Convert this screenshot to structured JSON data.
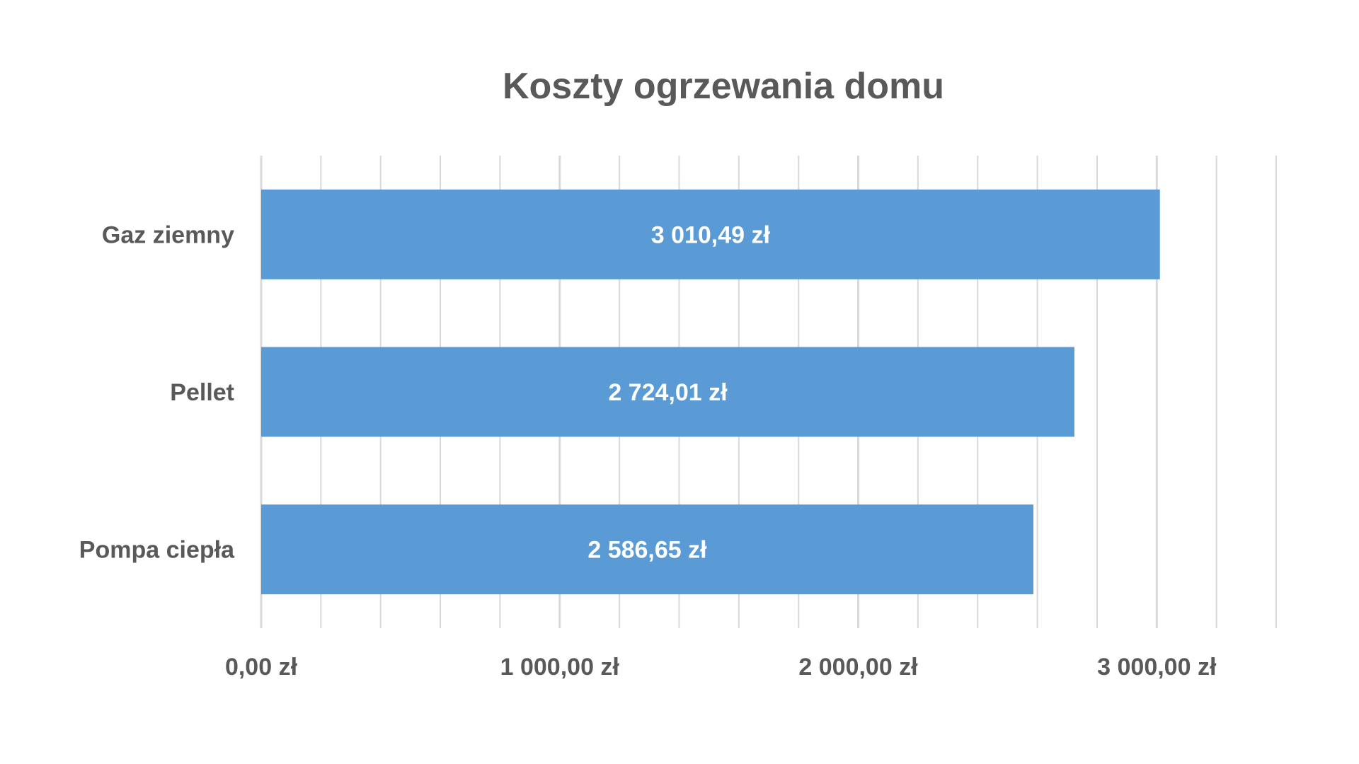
{
  "chart_data": {
    "type": "bar",
    "orientation": "horizontal",
    "title": "Koszty ogrzewania domu",
    "categories": [
      "Gaz ziemny",
      "Pellet",
      "Pompa ciepła"
    ],
    "values": [
      3010.49,
      2724.01,
      2586.65
    ],
    "value_labels": [
      "3 010,49 zł",
      "2 724,01 zł",
      "2 586,65 zł"
    ],
    "xlim": [
      0,
      3400
    ],
    "x_ticks": [
      0,
      1000,
      2000,
      3000
    ],
    "x_tick_labels": [
      "0,00 zł",
      "1 000,00 zł",
      "2 000,00 zł",
      "3 000,00 zł"
    ],
    "minor_gridline_step": 200,
    "grid": true,
    "xlabel": "",
    "ylabel": "",
    "legend": "none"
  },
  "colors": {
    "bar": "#5b9bd5",
    "title": "#595959",
    "axis_label": "#595959",
    "gridline": "#d9d9d9",
    "data_label": "#ffffff"
  }
}
